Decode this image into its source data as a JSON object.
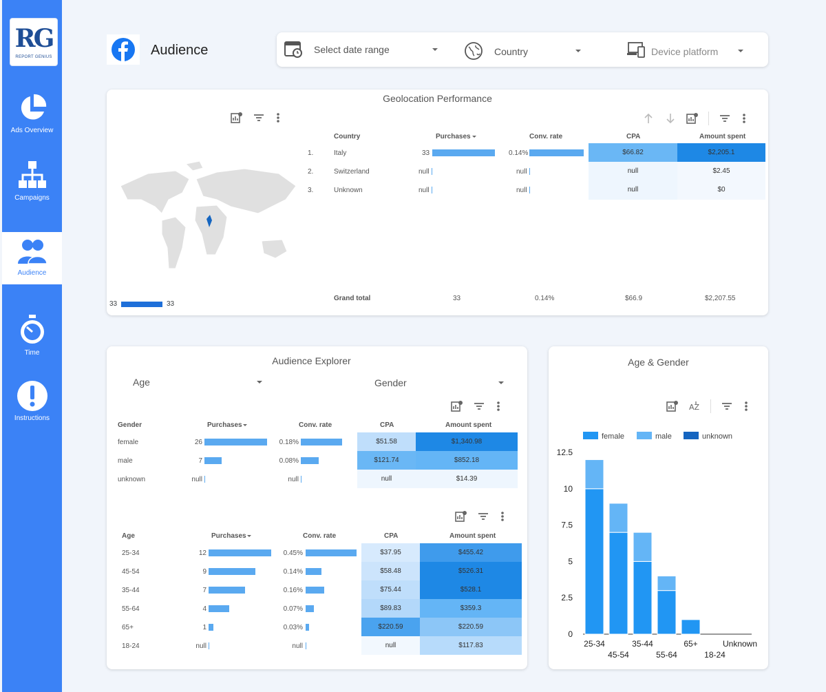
{
  "brand": {
    "logo_text": "RG",
    "logo_sub": "REPORT GENIUS"
  },
  "nav": [
    {
      "label": "Ads Overview",
      "icon": "pie-chart-icon"
    },
    {
      "label": "Campaigns",
      "icon": "hierarchy-icon"
    },
    {
      "label": "Audience",
      "icon": "people-icon"
    },
    {
      "label": "Time",
      "icon": "stopwatch-icon"
    },
    {
      "label": "Instructions",
      "icon": "exclamation-icon"
    }
  ],
  "header": {
    "title": "Audience",
    "icon": "facebook-icon"
  },
  "filters": {
    "date": "Select date range",
    "country": "Country",
    "device": "Device platform"
  },
  "geo": {
    "title": "Geolocation Performance",
    "columns": [
      "Country",
      "Purchases",
      "Conv. rate",
      "CPA",
      "Amount spent"
    ],
    "rows": [
      {
        "n": "1.",
        "country": "Italy",
        "purchases": "33",
        "purchases_pct": 1.0,
        "conv": "0.14%",
        "conv_pct": 1.0,
        "cpa": "$66.82",
        "spent": "$2,205.1"
      },
      {
        "n": "2.",
        "country": "Switzerland",
        "purchases": "null",
        "purchases_pct": 0,
        "conv": "null",
        "conv_pct": 0,
        "cpa": "null",
        "spent": "$2.45"
      },
      {
        "n": "3.",
        "country": "Unknown",
        "purchases": "null",
        "purchases_pct": 0,
        "conv": "null",
        "conv_pct": 0,
        "cpa": "null",
        "spent": "$0"
      }
    ],
    "total": {
      "label": "Grand total",
      "purchases": "33",
      "conv": "0.14%",
      "cpa": "$66.9",
      "spent": "$2,207.55"
    },
    "legend_min": "33",
    "legend_max": "33"
  },
  "explorer": {
    "title": "Audience Explorer",
    "filter_age": "Age",
    "filter_gender": "Gender",
    "gender_columns": [
      "Gender",
      "Purchases",
      "Conv. rate",
      "CPA",
      "Amount spent"
    ],
    "gender_rows": [
      {
        "label": "female",
        "purchases": "26",
        "pct": 1.0,
        "conv": "0.18%",
        "conv_pct": 1.0,
        "cpa": "$51.58",
        "spent": "$1,340.98"
      },
      {
        "label": "male",
        "purchases": "7",
        "pct": 0.27,
        "conv": "0.08%",
        "conv_pct": 0.44,
        "cpa": "$121.74",
        "spent": "$852.18"
      },
      {
        "label": "unknown",
        "purchases": "null",
        "pct": 0,
        "conv": "null",
        "conv_pct": 0,
        "cpa": "null",
        "spent": "$14.39"
      }
    ],
    "age_columns": [
      "Age",
      "Purchases",
      "Conv. rate",
      "CPA",
      "Amount spent"
    ],
    "age_rows": [
      {
        "label": "25-34",
        "purchases": "12",
        "pct": 1.0,
        "conv": "0.45%",
        "conv_pct": 1.0,
        "cpa": "$37.95",
        "spent": "$455.42"
      },
      {
        "label": "45-54",
        "purchases": "9",
        "pct": 0.75,
        "conv": "0.14%",
        "conv_pct": 0.31,
        "cpa": "$58.48",
        "spent": "$526.31"
      },
      {
        "label": "35-44",
        "purchases": "7",
        "pct": 0.58,
        "conv": "0.16%",
        "conv_pct": 0.36,
        "cpa": "$75.44",
        "spent": "$528.1"
      },
      {
        "label": "55-64",
        "purchases": "4",
        "pct": 0.33,
        "conv": "0.07%",
        "conv_pct": 0.16,
        "cpa": "$89.83",
        "spent": "$359.3"
      },
      {
        "label": "65+",
        "purchases": "1",
        "pct": 0.08,
        "conv": "0.03%",
        "conv_pct": 0.07,
        "cpa": "$220.59",
        "spent": "$220.59"
      },
      {
        "label": "18-24",
        "purchases": "null",
        "pct": 0,
        "conv": "null",
        "conv_pct": 0,
        "cpa": "null",
        "spent": "$117.83"
      }
    ]
  },
  "chart_data": {
    "type": "bar",
    "title": "Age & Gender",
    "categories": [
      "25-34",
      "45-54",
      "35-44",
      "55-64",
      "65+",
      "18-24",
      "Unknown"
    ],
    "series": [
      {
        "name": "female",
        "color": "#2196f3",
        "values": [
          10,
          7,
          5,
          3,
          1,
          0,
          0
        ]
      },
      {
        "name": "male",
        "color": "#64b5f6",
        "values": [
          2,
          2,
          2,
          1,
          0,
          0,
          0
        ]
      },
      {
        "name": "unknown",
        "color": "#1565c0",
        "values": [
          0,
          0,
          0,
          0,
          0,
          0,
          0
        ]
      }
    ],
    "y_ticks": [
      "0",
      "2.5",
      "5",
      "7.5",
      "10",
      "12.5"
    ],
    "ylim": [
      0,
      12.5
    ],
    "stacked": true,
    "legend": "top-left"
  }
}
